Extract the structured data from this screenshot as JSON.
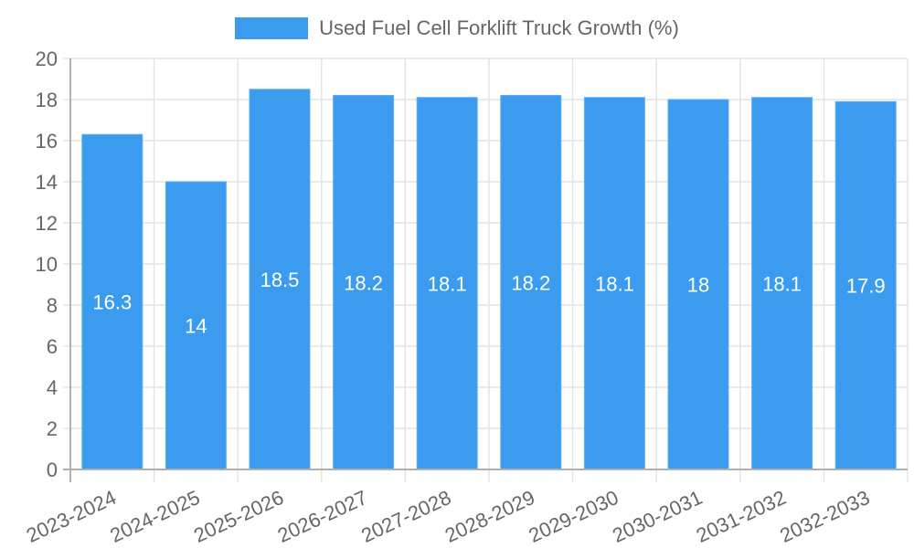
{
  "chart_data": {
    "type": "bar",
    "title": "",
    "xlabel": "",
    "ylabel": "",
    "legend": {
      "position": "top",
      "entries": [
        "Used Fuel Cell Forklift Truck Growth (%)"
      ]
    },
    "series": [
      {
        "name": "Used Fuel Cell Forklift Truck Growth (%)",
        "color": "#3a9bef",
        "values": [
          16.3,
          14,
          18.5,
          18.2,
          18.1,
          18.2,
          18.1,
          18,
          18.1,
          17.9
        ]
      }
    ],
    "categories": [
      "2023-2024",
      "2024-2025",
      "2025-2026",
      "2026-2027",
      "2027-2028",
      "2028-2029",
      "2029-2030",
      "2030-2031",
      "2031-2032",
      "2032-2033"
    ],
    "ylim": [
      0,
      20
    ],
    "yticks": [
      0,
      2,
      4,
      6,
      8,
      10,
      12,
      14,
      16,
      18,
      20
    ],
    "grid": true,
    "data_labels": true
  },
  "legend": {
    "label": "Used Fuel Cell Forklift Truck Growth (%)",
    "color": "#3a9bef"
  },
  "colors": {
    "bar": "#3a9bef",
    "grid": "#e4e4e4",
    "axis": "#b0b0b0",
    "text": "#666666"
  }
}
